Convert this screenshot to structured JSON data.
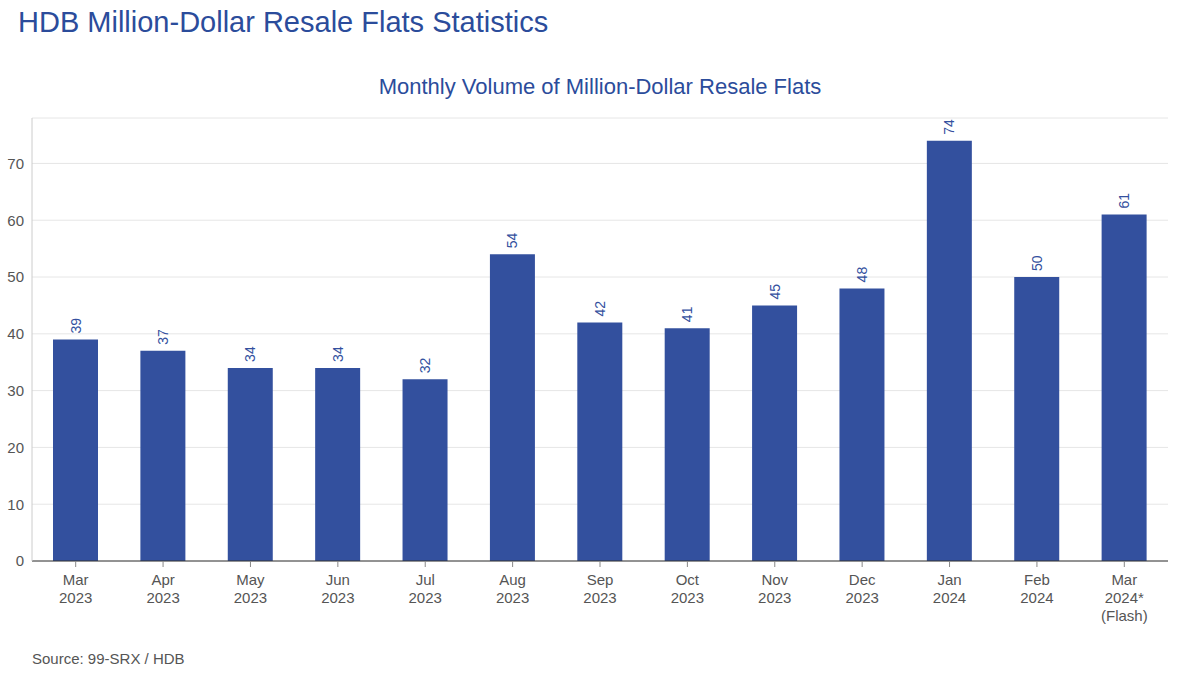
{
  "heading": "HDB Million-Dollar Resale Flats Statistics",
  "source": "Source: 99-SRX / HDB",
  "chart_data": {
    "type": "bar",
    "title": "Monthly Volume of Million-Dollar Resale Flats",
    "categories": [
      "Mar 2023",
      "Apr 2023",
      "May 2023",
      "Jun 2023",
      "Jul 2023",
      "Aug 2023",
      "Sep 2023",
      "Oct 2023",
      "Nov 2023",
      "Dec 2023",
      "Jan 2024",
      "Feb 2024",
      "Mar 2024* (Flash)"
    ],
    "values": [
      39,
      37,
      34,
      34,
      32,
      54,
      42,
      41,
      45,
      48,
      74,
      50,
      61
    ],
    "color": "#33509e",
    "ylim": [
      0,
      78
    ],
    "yticks": [
      0,
      10,
      20,
      30,
      40,
      50,
      60,
      70
    ],
    "grid": true,
    "data_labels": true
  }
}
